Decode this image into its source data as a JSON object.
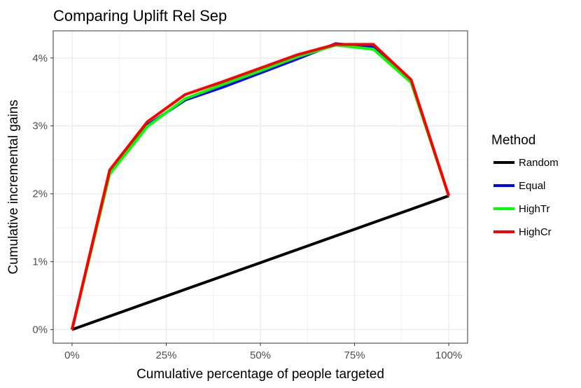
{
  "chart_data": {
    "type": "line",
    "title": "Comparing Uplift Rel Sep",
    "xlabel": "Cumulative percentage of people targeted",
    "ylabel": "Cumulative incremental gains",
    "xlim": [
      -0.05,
      1.05
    ],
    "ylim": [
      -0.002,
      0.044
    ],
    "x_ticks": [
      0,
      0.25,
      0.5,
      0.75,
      1.0
    ],
    "x_tick_labels": [
      "0%",
      "25%",
      "50%",
      "75%",
      "100%"
    ],
    "y_ticks": [
      0,
      0.01,
      0.02,
      0.03,
      0.04
    ],
    "y_tick_labels": [
      "0%",
      "1%",
      "2%",
      "3%",
      "4%"
    ],
    "grid": true,
    "legend": {
      "title": "Method",
      "position": "right"
    },
    "x": [
      0,
      0.1,
      0.2,
      0.3,
      0.4,
      0.5,
      0.6,
      0.7,
      0.8,
      0.9,
      1.0
    ],
    "series": [
      {
        "name": "Random",
        "color": "#000000",
        "values": [
          0,
          0.00197,
          0.00394,
          0.00591,
          0.00788,
          0.00985,
          0.01182,
          0.01379,
          0.01576,
          0.01773,
          0.0197
        ]
      },
      {
        "name": "Equal",
        "color": "#0000ff",
        "values": [
          0,
          0.0231,
          0.0301,
          0.0338,
          0.0357,
          0.0378,
          0.0399,
          0.0421,
          0.0416,
          0.0365,
          0.0197
        ]
      },
      {
        "name": "HighTr",
        "color": "#00ff00",
        "values": [
          0,
          0.0229,
          0.0299,
          0.034,
          0.0361,
          0.0381,
          0.0402,
          0.0419,
          0.0413,
          0.0364,
          0.0197
        ]
      },
      {
        "name": "HighCr",
        "color": "#ff0000",
        "values": [
          0,
          0.0235,
          0.0306,
          0.0346,
          0.0365,
          0.0385,
          0.0405,
          0.042,
          0.042,
          0.0368,
          0.0197
        ]
      }
    ]
  }
}
